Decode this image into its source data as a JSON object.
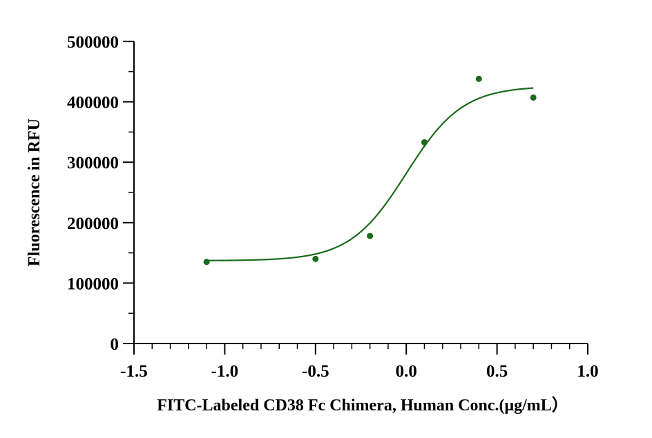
{
  "chart_data": {
    "type": "scatter",
    "title": "",
    "xlabel": "FITC-Labeled CD38 Fc Chimera, Human Conc.(μg/mL）",
    "ylabel": "Fluorescence in RFU",
    "xlim": [
      -1.5,
      1.0
    ],
    "ylim": [
      0,
      500000
    ],
    "x_ticks": [
      -1.5,
      -1.0,
      -0.5,
      0.0,
      0.5,
      1.0
    ],
    "x_tick_labels": [
      "-1.5",
      "-1.0",
      "-0.5",
      "0.0",
      "0.5",
      "1.0"
    ],
    "y_ticks": [
      0,
      100000,
      200000,
      300000,
      400000,
      500000
    ],
    "y_tick_labels": [
      "0",
      "100000",
      "200000",
      "300000",
      "400000",
      "500000"
    ],
    "grid": false,
    "series": [
      {
        "points": [
          {
            "x": -1.1,
            "y": 135000
          },
          {
            "x": -0.5,
            "y": 140000
          },
          {
            "x": -0.2,
            "y": 178000
          },
          {
            "x": 0.1,
            "y": 333000
          },
          {
            "x": 0.4,
            "y": 438000
          },
          {
            "x": 0.7,
            "y": 407000
          }
        ],
        "fit": {
          "model": "4PL",
          "bottom": 137000,
          "top": 426000,
          "logEC50": 0.0,
          "hillslope": 2.8,
          "x_range": [
            -1.1,
            0.7
          ]
        }
      }
    ],
    "colors": {
      "series": "#1a6b1a",
      "axis": "#000000"
    }
  }
}
